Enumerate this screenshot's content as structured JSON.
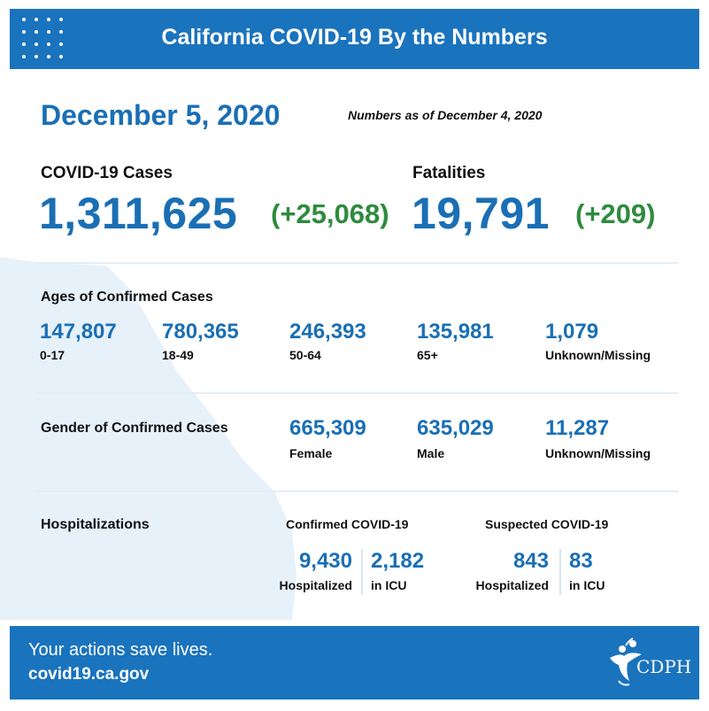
{
  "header": {
    "title": "California COVID-19 By the Numbers"
  },
  "date": "December 5, 2020",
  "as_of": "Numbers as of December 4, 2020",
  "cases": {
    "label": "COVID-19 Cases",
    "total": "1,311,625",
    "delta": "(+25,068)"
  },
  "fatalities": {
    "label": "Fatalities",
    "total": "19,791",
    "delta": "(+209)"
  },
  "ages": {
    "label": "Ages of Confirmed Cases",
    "items": [
      {
        "value": "147,807",
        "caption": "0-17"
      },
      {
        "value": "780,365",
        "caption": "18-49"
      },
      {
        "value": "246,393",
        "caption": "50-64"
      },
      {
        "value": "135,981",
        "caption": "65+"
      },
      {
        "value": "1,079",
        "caption": "Unknown/Missing"
      }
    ]
  },
  "gender": {
    "label": "Gender of Confirmed Cases",
    "items": [
      {
        "value": "665,309",
        "caption": "Female"
      },
      {
        "value": "635,029",
        "caption": "Male"
      },
      {
        "value": "11,287",
        "caption": "Unknown/Missing"
      }
    ]
  },
  "hospitalizations": {
    "label": "Hospitalizations",
    "confirmed": {
      "heading": "Confirmed COVID-19",
      "hospitalized": {
        "value": "9,430",
        "caption": "Hospitalized"
      },
      "icu": {
        "value": "2,182",
        "caption": "in ICU"
      }
    },
    "suspected": {
      "heading": "Suspected COVID-19",
      "hospitalized": {
        "value": "843",
        "caption": "Hospitalized"
      },
      "icu": {
        "value": "83",
        "caption": "in ICU"
      }
    }
  },
  "footer": {
    "tagline": "Your actions save lives.",
    "url": "covid19.ca.gov",
    "logo_text": "CDPH"
  },
  "colors": {
    "brand_blue": "#1a73bd",
    "number_blue": "#1a6fb4",
    "delta_green": "#2e8b3e",
    "state_shape": "#e3f0fa"
  }
}
